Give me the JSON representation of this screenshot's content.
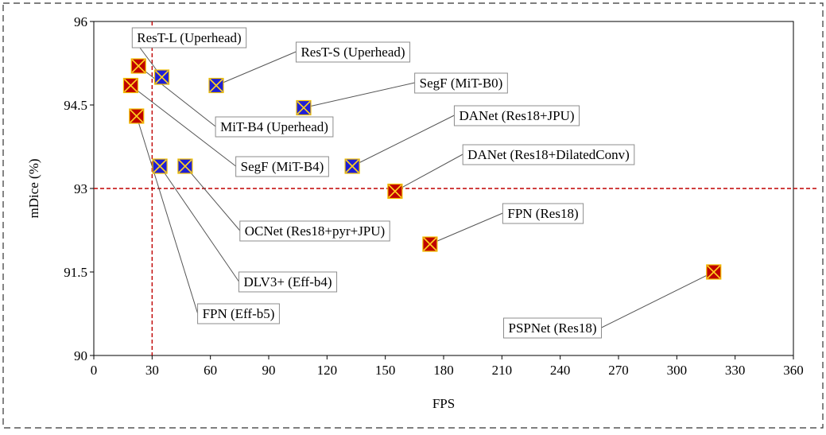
{
  "chart_data": {
    "type": "scatter",
    "title": "",
    "xlabel": "FPS",
    "ylabel": "mDice (%)",
    "xlim": [
      0,
      360
    ],
    "ylim": [
      90,
      96
    ],
    "x_ticks": [
      "0",
      "30",
      "60",
      "90",
      "120",
      "150",
      "180",
      "210",
      "240",
      "270",
      "300",
      "330",
      "360"
    ],
    "y_ticks": [
      "90",
      "91.5",
      "93",
      "94.5",
      "96"
    ],
    "grid": false,
    "legend": "none",
    "reference_lines": {
      "x": 30,
      "y": 93,
      "color": "#c00000",
      "style": "dashed"
    },
    "series": [
      {
        "marker": "blue-square-x",
        "color": "#1f1fd6",
        "points": [
          {
            "label": "ResT-L (Uperhead)",
            "x": 35,
            "y": 95.0
          },
          {
            "label": "ResT-S (Uperhead)",
            "x": 63,
            "y": 94.85
          },
          {
            "label": "SegF (MiT-B0)",
            "x": 108,
            "y": 94.45
          },
          {
            "label": "DANet (Res18+JPU)",
            "x": 133,
            "y": 93.4
          },
          {
            "label": "DLV3+ (Eff-b4)",
            "x": 34,
            "y": 93.4
          },
          {
            "label": "OCNet (Res18+pyr+JPU)",
            "x": 47,
            "y": 93.4
          }
        ]
      },
      {
        "marker": "red-square-x",
        "color": "#c00000",
        "points": [
          {
            "label": "MiT-B4 (Uperhead)",
            "x": 23,
            "y": 95.2
          },
          {
            "label": "SegF (MiT-B4)",
            "x": 19,
            "y": 94.85
          },
          {
            "label": "FPN (Eff-b5)",
            "x": 22,
            "y": 94.3
          },
          {
            "label": "DANet (Res18+DilatedConv)",
            "x": 155,
            "y": 92.95
          },
          {
            "label": "FPN (Res18)",
            "x": 173,
            "y": 92.0
          },
          {
            "label": "PSPNet (Res18)",
            "x": 319,
            "y": 91.5
          }
        ]
      }
    ]
  }
}
